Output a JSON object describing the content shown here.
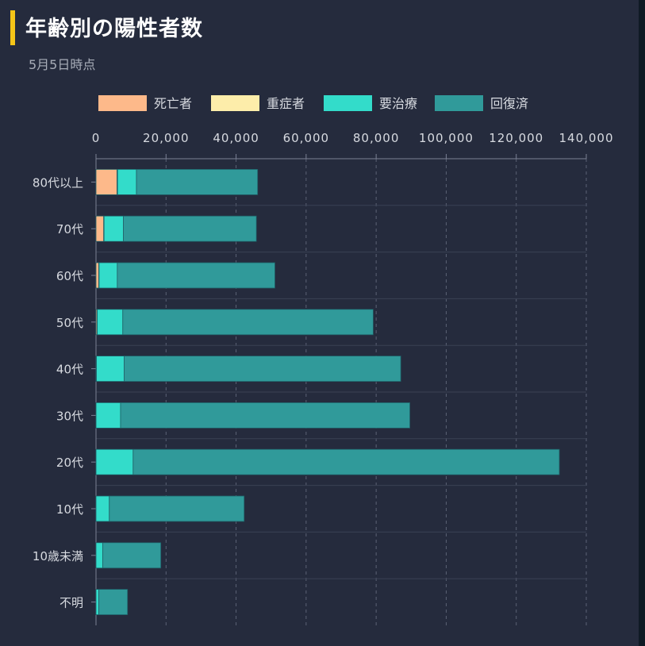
{
  "header": {
    "title": "年齢別の陽性者数",
    "subtitle": "5月5日時点"
  },
  "chart_data": {
    "type": "bar",
    "orientation": "horizontal",
    "stacked": true,
    "title": "年齢別の陽性者数",
    "subtitle": "5月5日時点",
    "categories": [
      "80代以上",
      "70代",
      "60代",
      "50代",
      "40代",
      "30代",
      "20代",
      "10代",
      "10歳未満",
      "不明"
    ],
    "series": [
      {
        "name": "死亡者",
        "color": "#fdb98a",
        "values": [
          6000,
          2200,
          800,
          300,
          100,
          0,
          0,
          0,
          0,
          0
        ]
      },
      {
        "name": "重症者",
        "color": "#fdedaa",
        "values": [
          150,
          100,
          80,
          50,
          20,
          10,
          5,
          0,
          0,
          0
        ]
      },
      {
        "name": "要治療",
        "color": "#33dcca",
        "values": [
          5400,
          5500,
          5200,
          7300,
          7900,
          7000,
          10600,
          3800,
          1900,
          800
        ]
      },
      {
        "name": "回復済",
        "color": "#309a9a",
        "values": [
          34600,
          38000,
          45000,
          71500,
          79000,
          82600,
          121700,
          38500,
          16600,
          8200
        ]
      }
    ],
    "xlim": [
      0,
      140000
    ],
    "xticks": [
      0,
      20000,
      40000,
      60000,
      80000,
      100000,
      120000,
      140000
    ],
    "xtick_labels": [
      "0",
      "20,000",
      "40,000",
      "60,000",
      "80,000",
      "100,000",
      "120,000",
      "140,000"
    ],
    "grid": true,
    "legend_position": "top"
  }
}
